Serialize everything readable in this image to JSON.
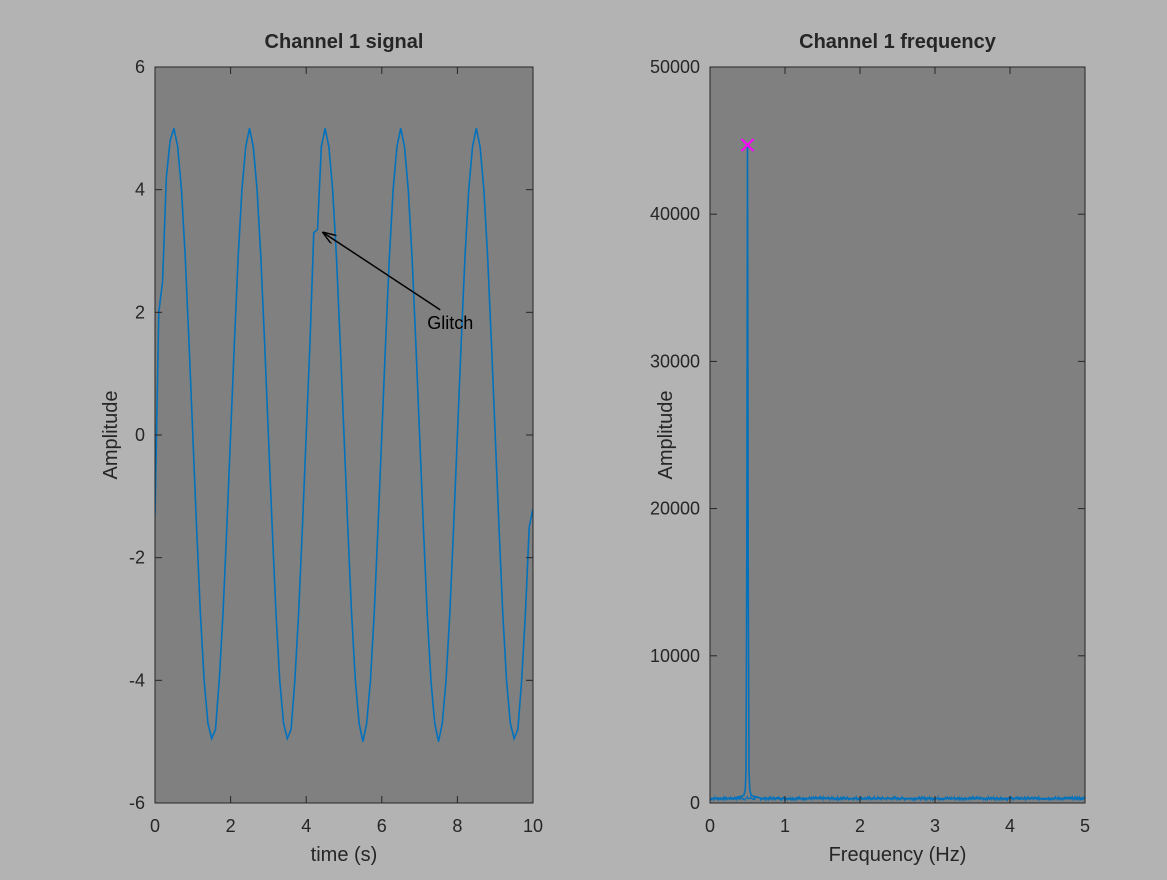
{
  "chart_data": [
    {
      "type": "line",
      "title": "Channel 1 signal",
      "xlabel": "time (s)",
      "ylabel": "Amplitude",
      "xlim": [
        0,
        10
      ],
      "ylim": [
        -6,
        6
      ],
      "xticks": [
        "0",
        "2",
        "4",
        "6",
        "8",
        "10"
      ],
      "yticks": [
        "-6",
        "-4",
        "-2",
        "0",
        "2",
        "4",
        "6"
      ],
      "grid": false,
      "series": [
        {
          "color": "#0072bd",
          "x": [
            0,
            0.1,
            0.2,
            0.3,
            0.4,
            0.5,
            0.6,
            0.7,
            0.8,
            0.9,
            1.0,
            1.1,
            1.2,
            1.3,
            1.4,
            1.5,
            1.6,
            1.7,
            1.8,
            1.9,
            2.0,
            2.1,
            2.2,
            2.3,
            2.4,
            2.5,
            2.6,
            2.7,
            2.8,
            2.9,
            3.0,
            3.1,
            3.2,
            3.3,
            3.4,
            3.5,
            3.6,
            3.7,
            3.8,
            3.9,
            4.0,
            4.1,
            4.2,
            4.3,
            4.4,
            4.5,
            4.6,
            4.7,
            4.8,
            4.9,
            5.0,
            5.1,
            5.2,
            5.3,
            5.4,
            5.5,
            5.6,
            5.7,
            5.8,
            5.9,
            6.0,
            6.1,
            6.2,
            6.3,
            6.4,
            6.5,
            6.6,
            6.7,
            6.8,
            6.9,
            7.0,
            7.1,
            7.2,
            7.3,
            7.4,
            7.5,
            7.6,
            7.7,
            7.8,
            7.9,
            8.0,
            8.1,
            8.2,
            8.3,
            8.4,
            8.5,
            8.6,
            8.7,
            8.8,
            8.9,
            9.0,
            9.1,
            9.2,
            9.3,
            9.4,
            9.5,
            9.6,
            9.7,
            9.8,
            9.9,
            10.0
          ],
          "y": [
            -1.3,
            2.0,
            2.5,
            4.2,
            4.8,
            5.0,
            4.7,
            4.0,
            2.9,
            1.5,
            0.0,
            -1.5,
            -2.9,
            -4.0,
            -4.7,
            -4.95,
            -4.8,
            -4.0,
            -2.9,
            -1.5,
            0.0,
            1.5,
            2.9,
            4.0,
            4.7,
            5.0,
            4.7,
            4.0,
            2.9,
            1.5,
            0.0,
            -1.5,
            -2.9,
            -4.0,
            -4.7,
            -4.95,
            -4.8,
            -4.0,
            -2.9,
            -1.5,
            0.0,
            1.5,
            3.3,
            3.35,
            4.7,
            5.0,
            4.7,
            4.0,
            2.9,
            1.5,
            0.0,
            -1.5,
            -2.9,
            -4.0,
            -4.7,
            -5.0,
            -4.7,
            -4.0,
            -2.9,
            -1.5,
            0.0,
            1.5,
            2.9,
            4.0,
            4.7,
            5.0,
            4.7,
            4.0,
            2.9,
            1.5,
            0.0,
            -1.5,
            -2.9,
            -4.0,
            -4.7,
            -5.0,
            -4.7,
            -4.0,
            -2.9,
            -1.5,
            0.0,
            1.5,
            2.9,
            4.0,
            4.7,
            5.0,
            4.7,
            4.0,
            2.9,
            1.5,
            0.0,
            -1.5,
            -2.9,
            -4.0,
            -4.7,
            -4.95,
            -4.8,
            -4.0,
            -2.9,
            -1.5,
            -1.2
          ]
        }
      ],
      "annotations": [
        {
          "text": "Glitch",
          "text_x": 7.6,
          "text_y": 1.6,
          "arrow_to_x": 4.45,
          "arrow_to_y": 3.3,
          "color": "#000000"
        }
      ]
    },
    {
      "type": "line",
      "title": "Channel 1 frequency",
      "xlabel": "Frequency (Hz)",
      "ylabel": "Amplitude",
      "xlim": [
        0,
        5
      ],
      "ylim": [
        0,
        50000
      ],
      "xticks": [
        "0",
        "1",
        "2",
        "3",
        "4",
        "5"
      ],
      "yticks": [
        "0",
        "10000",
        "20000",
        "30000",
        "40000",
        "50000"
      ],
      "grid": false,
      "series": [
        {
          "color": "#0072bd",
          "noise_floor": 300,
          "x": [
            0,
            0.3,
            0.45,
            0.47,
            0.48,
            0.49,
            0.495,
            0.5,
            0.505,
            0.51,
            0.52,
            0.53,
            0.55,
            0.7,
            5.0
          ],
          "y": [
            300,
            300,
            500,
            900,
            2200,
            16000,
            30000,
            44700,
            30000,
            15000,
            2200,
            900,
            500,
            300,
            300
          ]
        }
      ],
      "marker": {
        "x": 0.5,
        "y": 44700,
        "symbol": "x",
        "color": "#ff00ff"
      }
    }
  ]
}
